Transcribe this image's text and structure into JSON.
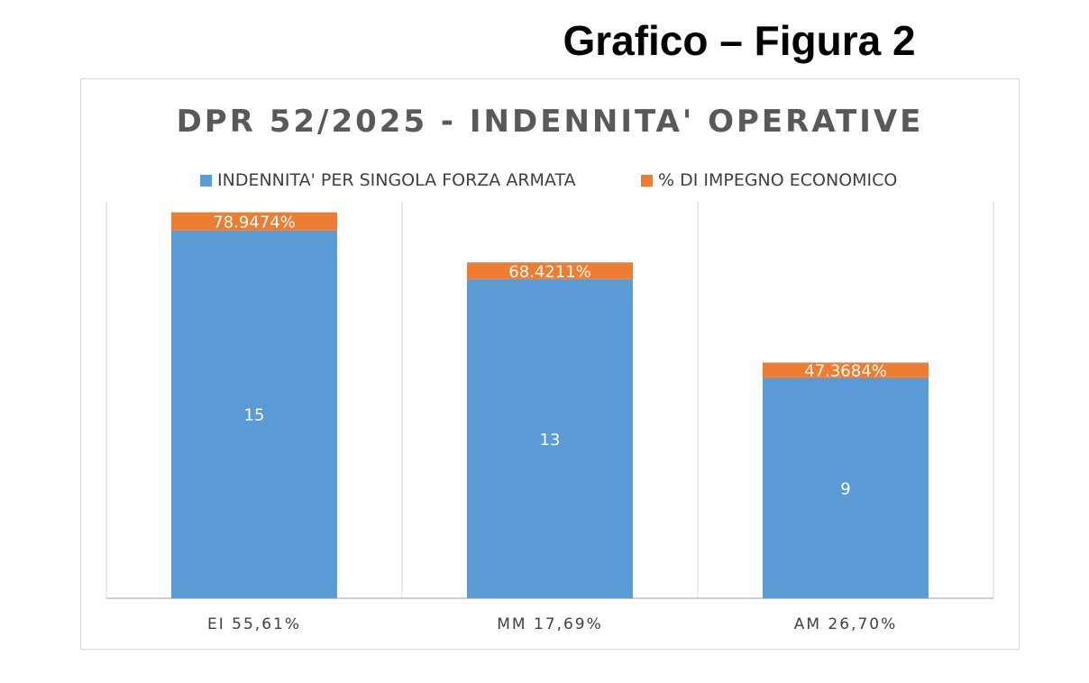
{
  "figure_title": "Grafico – Figura 2",
  "colors": {
    "blue": "#5b9bd5",
    "orange": "#ed7d31",
    "grid": "#d9d9d9",
    "axis": "#bfbfbf"
  },
  "chart_data": {
    "type": "bar",
    "stacked": true,
    "title": "DPR 52/2025 - INDENNITA' OPERATIVE",
    "categories": [
      "EI 55,61%",
      "MM 17,69%",
      "AM 26,70%"
    ],
    "series": [
      {
        "name": "INDENNITA' PER SINGOLA FORZA ARMATA",
        "color": "#5b9bd5",
        "values": [
          15,
          13,
          9
        ],
        "labels": [
          "15",
          "13",
          "9"
        ]
      },
      {
        "name": "% DI IMPEGNO ECONOMICO",
        "color": "#ed7d31",
        "values": [
          0.789474,
          0.684211,
          0.473684
        ],
        "labels": [
          "78.9474%",
          "68.4211%",
          "47.3684%"
        ]
      }
    ],
    "ylim": [
      0,
      18
    ],
    "legend": "top",
    "grid": "vertical-category-separators"
  }
}
